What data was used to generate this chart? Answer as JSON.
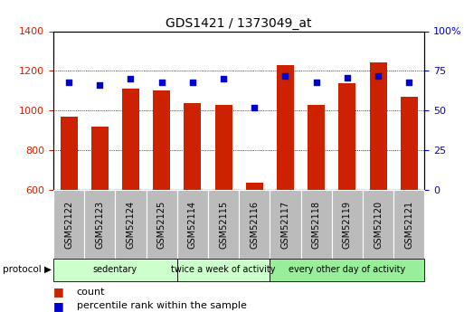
{
  "title": "GDS1421 / 1373049_at",
  "samples": [
    "GSM52122",
    "GSM52123",
    "GSM52124",
    "GSM52125",
    "GSM52114",
    "GSM52115",
    "GSM52116",
    "GSM52117",
    "GSM52118",
    "GSM52119",
    "GSM52120",
    "GSM52121"
  ],
  "counts": [
    970,
    920,
    1110,
    1100,
    1040,
    1030,
    640,
    1230,
    1030,
    1140,
    1245,
    1070
  ],
  "percentiles": [
    68,
    66,
    70,
    68,
    68,
    70,
    52,
    72,
    68,
    71,
    72,
    68
  ],
  "ylim_left": [
    600,
    1400
  ],
  "ylim_right": [
    0,
    100
  ],
  "yticks_left": [
    600,
    800,
    1000,
    1200,
    1400
  ],
  "yticks_right": [
    0,
    25,
    50,
    75,
    100
  ],
  "bar_color": "#cc2200",
  "dot_color": "#0000cc",
  "plot_bg": "#ffffff",
  "groups": [
    {
      "label": "sedentary",
      "start": 0,
      "end": 4,
      "color": "#ccffcc"
    },
    {
      "label": "twice a week of activity",
      "start": 4,
      "end": 7,
      "color": "#ccffcc"
    },
    {
      "label": "every other day of activity",
      "start": 7,
      "end": 12,
      "color": "#99ee99"
    }
  ],
  "protocol_label": "protocol",
  "legend_count": "count",
  "legend_percentile": "percentile rank within the sample",
  "sample_bg_color": "#bbbbbb",
  "title_fontsize": 10,
  "tick_fontsize": 8,
  "sample_label_fontsize": 7,
  "proto_fontsize": 7,
  "legend_fontsize": 8
}
